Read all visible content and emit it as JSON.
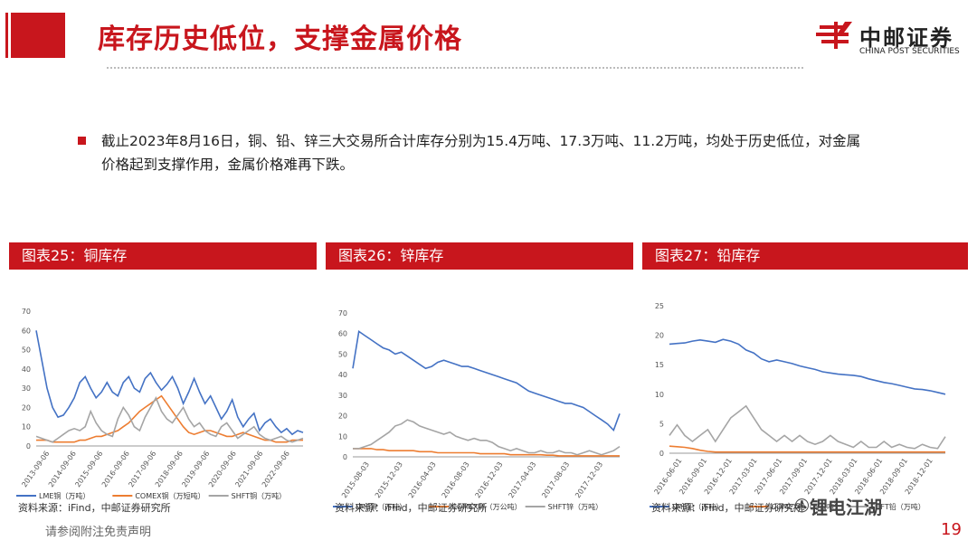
{
  "slide_title": "库存历史低位，支撑金属价格",
  "logo": {
    "cn": "中邮证券",
    "en": "CHINA POST SECURITIES"
  },
  "bullet": "截止2023年8月16日，铜、铅、锌三大交易所合计库存分别为15.4万吨、17.3万吨、11.2万吨，均处于历史低位，对金属价格起到支撑作用，金属价格难再下跌。",
  "footer_note": "请参阅附注免责声明",
  "page_number": "19",
  "watermark": "锂电江湖",
  "colors": {
    "red": "#c8161d",
    "blue": "#4472c4",
    "orange": "#ed7d31",
    "gray": "#a5a5a5"
  },
  "charts": [
    {
      "header": "图表25：铜库存",
      "source": "资料来源：iFind，中邮证券研究所",
      "chart_data": {
        "type": "line",
        "ylim": [
          0,
          70
        ],
        "yticks": [
          0,
          10,
          20,
          30,
          40,
          50,
          60,
          70
        ],
        "xticks": [
          "2013-09-06",
          "2014-09-06",
          "2015-09-06",
          "2016-09-06",
          "2017-09-06",
          "2018-09-06",
          "2019-09-06",
          "2020-09-06",
          "2021-09-06",
          "2022-09-06"
        ],
        "series": [
          {
            "name": "LME铜（万吨）",
            "color": "#4472c4",
            "values": [
              60,
              45,
              30,
              20,
              15,
              16,
              20,
              25,
              33,
              36,
              30,
              25,
              28,
              33,
              28,
              26,
              33,
              36,
              30,
              28,
              35,
              38,
              33,
              29,
              32,
              36,
              30,
              22,
              28,
              35,
              28,
              22,
              26,
              20,
              14,
              18,
              24,
              15,
              10,
              14,
              17,
              8,
              12,
              14,
              10,
              7,
              9,
              6,
              8,
              7
            ]
          },
          {
            "name": "COMEX铜（万短吨）",
            "color": "#ed7d31",
            "values": [
              3,
              3,
              3,
              2,
              2,
              2,
              2,
              2,
              3,
              3,
              4,
              5,
              5,
              6,
              7,
              8,
              10,
              12,
              15,
              18,
              20,
              22,
              24,
              26,
              22,
              18,
              14,
              10,
              7,
              6,
              7,
              8,
              8,
              7,
              6,
              5,
              5,
              6,
              7,
              6,
              5,
              4,
              3,
              3,
              2,
              2,
              2,
              3,
              3,
              3
            ]
          },
          {
            "name": "SHFT铜（万吨）",
            "color": "#a5a5a5",
            "values": [
              5,
              4,
              3,
              2,
              4,
              6,
              8,
              9,
              8,
              10,
              18,
              12,
              8,
              6,
              5,
              14,
              20,
              16,
              10,
              8,
              15,
              20,
              25,
              18,
              14,
              12,
              16,
              20,
              14,
              10,
              12,
              8,
              6,
              5,
              10,
              12,
              8,
              4,
              6,
              8,
              10,
              6,
              4,
              3,
              4,
              5,
              3,
              2,
              3,
              4
            ]
          }
        ]
      }
    },
    {
      "header": "图表26：锌库存",
      "source": "资料来源：iFind，中邮证券研究所",
      "chart_data": {
        "type": "line",
        "ylim": [
          0,
          70
        ],
        "yticks": [
          0,
          10,
          20,
          30,
          40,
          50,
          60,
          70
        ],
        "xticks": [
          "2015-08-03",
          "2015-12-03",
          "2016-04-03",
          "2016-08-03",
          "2016-12-03",
          "2017-04-03",
          "2017-08-03",
          "2017-12-03"
        ],
        "series": [
          {
            "name": "LME锌（万吨）",
            "color": "#4472c4",
            "values": [
              43,
              61,
              59,
              57,
              55,
              53,
              52,
              50,
              51,
              49,
              47,
              45,
              43,
              44,
              46,
              47,
              46,
              45,
              44,
              44,
              43,
              42,
              41,
              40,
              39,
              38,
              37,
              36,
              34,
              32,
              31,
              30,
              29,
              28,
              27,
              26,
              26,
              25,
              24,
              22,
              20,
              18,
              16,
              13,
              21
            ]
          },
          {
            "name": "COMEX锌（万公吨）",
            "color": "#ed7d31",
            "values": [
              4,
              4,
              4,
              4,
              3.5,
              3.5,
              3,
              3,
              3,
              3,
              3,
              2.5,
              2.5,
              2.5,
              2,
              2,
              2,
              2,
              2,
              2,
              2,
              1.5,
              1.5,
              1.5,
              1.5,
              1.5,
              1,
              1,
              1,
              1,
              1,
              1,
              0.8,
              0.8,
              0.5,
              0.5,
              0.5,
              0.5,
              0.5,
              0.5,
              0.5,
              0.5,
              0.5,
              0.5,
              0.5
            ]
          },
          {
            "name": "SHFT锌（万吨）",
            "color": "#a5a5a5",
            "values": [
              4,
              4,
              5,
              6,
              8,
              10,
              12,
              15,
              16,
              18,
              17,
              15,
              14,
              13,
              12,
              11,
              12,
              10,
              9,
              8,
              9,
              8,
              8,
              7,
              5,
              4,
              3,
              4,
              3,
              2,
              2,
              3,
              2,
              2,
              3,
              2,
              2,
              1,
              2,
              3,
              2,
              1,
              2,
              3,
              5
            ]
          }
        ]
      }
    },
    {
      "header": "图表27：铅库存",
      "source": "资料来源：iFind，中邮证券研究所",
      "chart_data": {
        "type": "line",
        "ylim": [
          0,
          25
        ],
        "yticks": [
          0,
          5,
          10,
          15,
          20,
          25
        ],
        "xticks": [
          "2016-06-01",
          "2016-09-01",
          "2016-12-01",
          "2017-03-01",
          "2017-06-01",
          "2017-09-01",
          "2017-12-01",
          "2018-03-01",
          "2018-06-01",
          "2018-09-01",
          "2018-12-01"
        ],
        "series": [
          {
            "name": "LME铅（万吨）",
            "color": "#4472c4",
            "values": [
              18.5,
              18.6,
              18.7,
              19.0,
              19.2,
              19.0,
              18.8,
              19.3,
              19.0,
              18.5,
              17.5,
              17,
              16,
              15.5,
              15.8,
              15.5,
              15.2,
              14.8,
              14.5,
              14.2,
              13.8,
              13.6,
              13.4,
              13.3,
              13.2,
              13.0,
              12.6,
              12.3,
              12,
              11.8,
              11.5,
              11.2,
              10.9,
              10.8,
              10.6,
              10.3,
              10.0
            ]
          },
          {
            "name": "COMEX铅（万公吨）",
            "color": "#ed7d31",
            "values": [
              1.2,
              1.1,
              1,
              0.8,
              0.5,
              0.3,
              0.2,
              0.2,
              0.2,
              0.2,
              0.2,
              0.2,
              0.2,
              0.2,
              0.2,
              0.2,
              0.2,
              0.2,
              0.2,
              0.2,
              0.2,
              0.2,
              0.2,
              0.2,
              0.2,
              0.2,
              0.2,
              0.2,
              0.2,
              0.2,
              0.2,
              0.2,
              0.2,
              0.2,
              0.2,
              0.2,
              0.2
            ]
          },
          {
            "name": "SHFT铅（万吨）",
            "color": "#a5a5a5",
            "values": [
              3,
              4.8,
              3,
              2,
              3,
              4,
              2,
              4,
              6,
              7,
              8,
              6,
              4,
              3,
              2,
              3,
              2,
              3,
              2,
              1.5,
              2,
              3,
              2,
              1.5,
              1,
              2,
              1,
              1,
              2,
              1,
              1.5,
              1,
              0.8,
              1.5,
              1,
              0.8,
              2.8
            ]
          }
        ]
      }
    }
  ]
}
